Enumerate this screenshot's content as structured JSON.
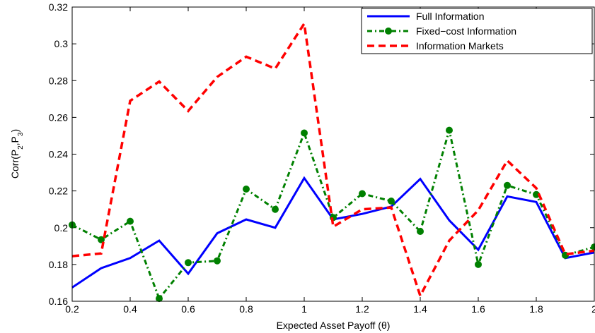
{
  "chart_data": {
    "type": "line",
    "title": "",
    "xlabel": "Expected Asset Payoff (θ)",
    "ylabel_parts": {
      "base": "Corr(P",
      "sub1": "2",
      "mid": ",P",
      "sub2": "3",
      "end": ")"
    },
    "xlim": [
      0.2,
      2
    ],
    "ylim": [
      0.16,
      0.32
    ],
    "x_ticks": [
      "0.2",
      "0.4",
      "0.6",
      "0.8",
      "1",
      "1.2",
      "1.4",
      "1.6",
      "1.8",
      "2"
    ],
    "y_ticks": [
      "0.16",
      "0.18",
      "0.2",
      "0.22",
      "0.24",
      "0.26",
      "0.28",
      "0.3",
      "0.32"
    ],
    "grid": false,
    "legend_position": "top-right",
    "x": [
      0.2,
      0.3,
      0.4,
      0.5,
      0.6,
      0.7,
      0.8,
      0.9,
      1.0,
      1.1,
      1.2,
      1.3,
      1.4,
      1.5,
      1.6,
      1.7,
      1.8,
      1.9,
      2.0
    ],
    "series": [
      {
        "name": "Full Information",
        "color": "#0000ff",
        "style": "solid",
        "values": [
          0.1675,
          0.178,
          0.1835,
          0.193,
          0.175,
          0.197,
          0.2045,
          0.2,
          0.227,
          0.2045,
          0.2075,
          0.2115,
          0.2265,
          0.204,
          0.188,
          0.217,
          0.214,
          0.1835,
          0.1865
        ]
      },
      {
        "name": "Fixed−cost Information",
        "color": "#008000",
        "style": "dash-dot-markers",
        "values": [
          0.2015,
          0.1935,
          0.2035,
          0.1615,
          0.181,
          0.182,
          0.221,
          0.21,
          0.2515,
          0.2055,
          0.2185,
          0.2145,
          0.198,
          0.253,
          0.18,
          0.223,
          0.218,
          0.185,
          0.1895
        ]
      },
      {
        "name": "Information Markets",
        "color": "#ff0000",
        "style": "dashed",
        "values": [
          0.1845,
          0.186,
          0.269,
          0.2795,
          0.2635,
          0.282,
          0.293,
          0.2865,
          0.311,
          0.2005,
          0.21,
          0.211,
          0.163,
          0.193,
          0.2095,
          0.2365,
          0.2215,
          0.1855,
          0.1875
        ]
      }
    ]
  }
}
